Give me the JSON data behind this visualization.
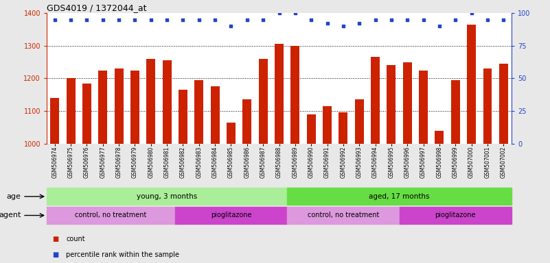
{
  "title": "GDS4019 / 1372044_at",
  "samples": [
    "GSM506974",
    "GSM506975",
    "GSM506976",
    "GSM506977",
    "GSM506978",
    "GSM506979",
    "GSM506980",
    "GSM506981",
    "GSM506982",
    "GSM506983",
    "GSM506984",
    "GSM506985",
    "GSM506986",
    "GSM506987",
    "GSM506988",
    "GSM506989",
    "GSM506990",
    "GSM506991",
    "GSM506992",
    "GSM506993",
    "GSM506994",
    "GSM506995",
    "GSM506996",
    "GSM506997",
    "GSM506998",
    "GSM506999",
    "GSM507000",
    "GSM507001",
    "GSM507002"
  ],
  "counts": [
    1140,
    1200,
    1185,
    1225,
    1230,
    1225,
    1260,
    1255,
    1165,
    1195,
    1175,
    1065,
    1135,
    1260,
    1305,
    1300,
    1090,
    1115,
    1095,
    1135,
    1265,
    1240,
    1250,
    1225,
    1040,
    1195,
    1365,
    1230,
    1245
  ],
  "percentile_ranks": [
    95,
    95,
    95,
    95,
    95,
    95,
    95,
    95,
    95,
    95,
    95,
    90,
    95,
    95,
    100,
    100,
    95,
    92,
    90,
    92,
    95,
    95,
    95,
    95,
    90,
    95,
    100,
    95,
    95
  ],
  "bar_color": "#cc2200",
  "dot_color": "#2244cc",
  "ylim_left": [
    1000,
    1400
  ],
  "ylim_right": [
    0,
    100
  ],
  "yticks_left": [
    1000,
    1100,
    1200,
    1300,
    1400
  ],
  "yticks_right": [
    0,
    25,
    50,
    75,
    100
  ],
  "grid_values": [
    1100,
    1200,
    1300
  ],
  "age_groups": [
    {
      "label": "young, 3 months",
      "start": 0,
      "end": 15,
      "color": "#aaee99"
    },
    {
      "label": "aged, 17 months",
      "start": 15,
      "end": 29,
      "color": "#66dd44"
    }
  ],
  "agent_groups": [
    {
      "label": "control, no treatment",
      "start": 0,
      "end": 8,
      "color": "#dd99dd"
    },
    {
      "label": "pioglitazone",
      "start": 8,
      "end": 15,
      "color": "#cc44cc"
    },
    {
      "label": "control, no treatment",
      "start": 15,
      "end": 22,
      "color": "#dd99dd"
    },
    {
      "label": "pioglitazone",
      "start": 22,
      "end": 29,
      "color": "#cc44cc"
    }
  ],
  "legend_items": [
    {
      "label": "count",
      "color": "#cc2200"
    },
    {
      "label": "percentile rank within the sample",
      "color": "#2244cc"
    }
  ],
  "bg_color": "#e8e8e8",
  "plot_bg_color": "#ffffff"
}
